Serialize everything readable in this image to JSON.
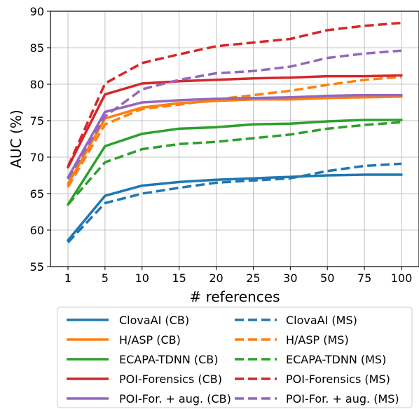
{
  "chart_data": {
    "type": "line",
    "xlabel": "# references",
    "ylabel": "AUC (%)",
    "categories": [
      "1",
      "5",
      "10",
      "15",
      "20",
      "25",
      "30",
      "50",
      "75",
      "100"
    ],
    "ylim": [
      55,
      90
    ],
    "yticks": [
      55,
      60,
      65,
      70,
      75,
      80,
      85,
      90
    ],
    "grid": true,
    "legend_placement": "bottom",
    "series": [
      {
        "name": "ClovaAI (CB)",
        "color": "#1f77b4",
        "style": "solid",
        "values": [
          58.6,
          64.7,
          66.1,
          66.6,
          66.9,
          67.1,
          67.3,
          67.5,
          67.6,
          67.6
        ]
      },
      {
        "name": "ClovaAI (MS)",
        "color": "#1f77b4",
        "style": "dashed",
        "values": [
          58.3,
          63.7,
          65.0,
          65.8,
          66.5,
          66.8,
          67.1,
          68.1,
          68.8,
          69.1
        ]
      },
      {
        "name": "H/ASP (CB)",
        "color": "#ff7f0e",
        "style": "solid",
        "values": [
          66.3,
          75.3,
          76.8,
          77.4,
          77.7,
          77.9,
          77.9,
          78.1,
          78.2,
          78.3
        ]
      },
      {
        "name": "H/ASP (MS)",
        "color": "#ff7f0e",
        "style": "dashed",
        "values": [
          65.9,
          74.5,
          76.6,
          77.2,
          77.9,
          78.5,
          79.1,
          79.9,
          80.6,
          81.0
        ]
      },
      {
        "name": "ECAPA-TDNN (CB)",
        "color": "#2ca02c",
        "style": "solid",
        "values": [
          63.5,
          71.5,
          73.2,
          73.9,
          74.1,
          74.5,
          74.6,
          74.9,
          75.1,
          75.1
        ]
      },
      {
        "name": "ECAPA-TDNN (MS)",
        "color": "#2ca02c",
        "style": "dashed",
        "values": [
          63.5,
          69.3,
          71.1,
          71.8,
          72.1,
          72.6,
          73.1,
          73.9,
          74.4,
          74.8
        ]
      },
      {
        "name": "POI-Forensics (CB)",
        "color": "#d62728",
        "style": "solid",
        "values": [
          68.6,
          78.6,
          80.1,
          80.4,
          80.6,
          80.8,
          80.9,
          81.1,
          81.1,
          81.2
        ]
      },
      {
        "name": "POI-Forensics (MS)",
        "color": "#d62728",
        "style": "dashed",
        "values": [
          68.7,
          80.1,
          82.9,
          84.1,
          85.2,
          85.7,
          86.2,
          87.4,
          88.0,
          88.4
        ]
      },
      {
        "name": "POI-For. + aug. (CB)",
        "color": "#9467bd",
        "style": "solid",
        "values": [
          67.2,
          76.2,
          77.5,
          77.8,
          78.0,
          78.1,
          78.2,
          78.4,
          78.5,
          78.5
        ]
      },
      {
        "name": "POI-For. + aug. (MS)",
        "color": "#9467bd",
        "style": "dashed",
        "values": [
          67.0,
          75.6,
          79.3,
          80.6,
          81.5,
          81.8,
          82.4,
          83.6,
          84.2,
          84.6
        ]
      }
    ]
  }
}
